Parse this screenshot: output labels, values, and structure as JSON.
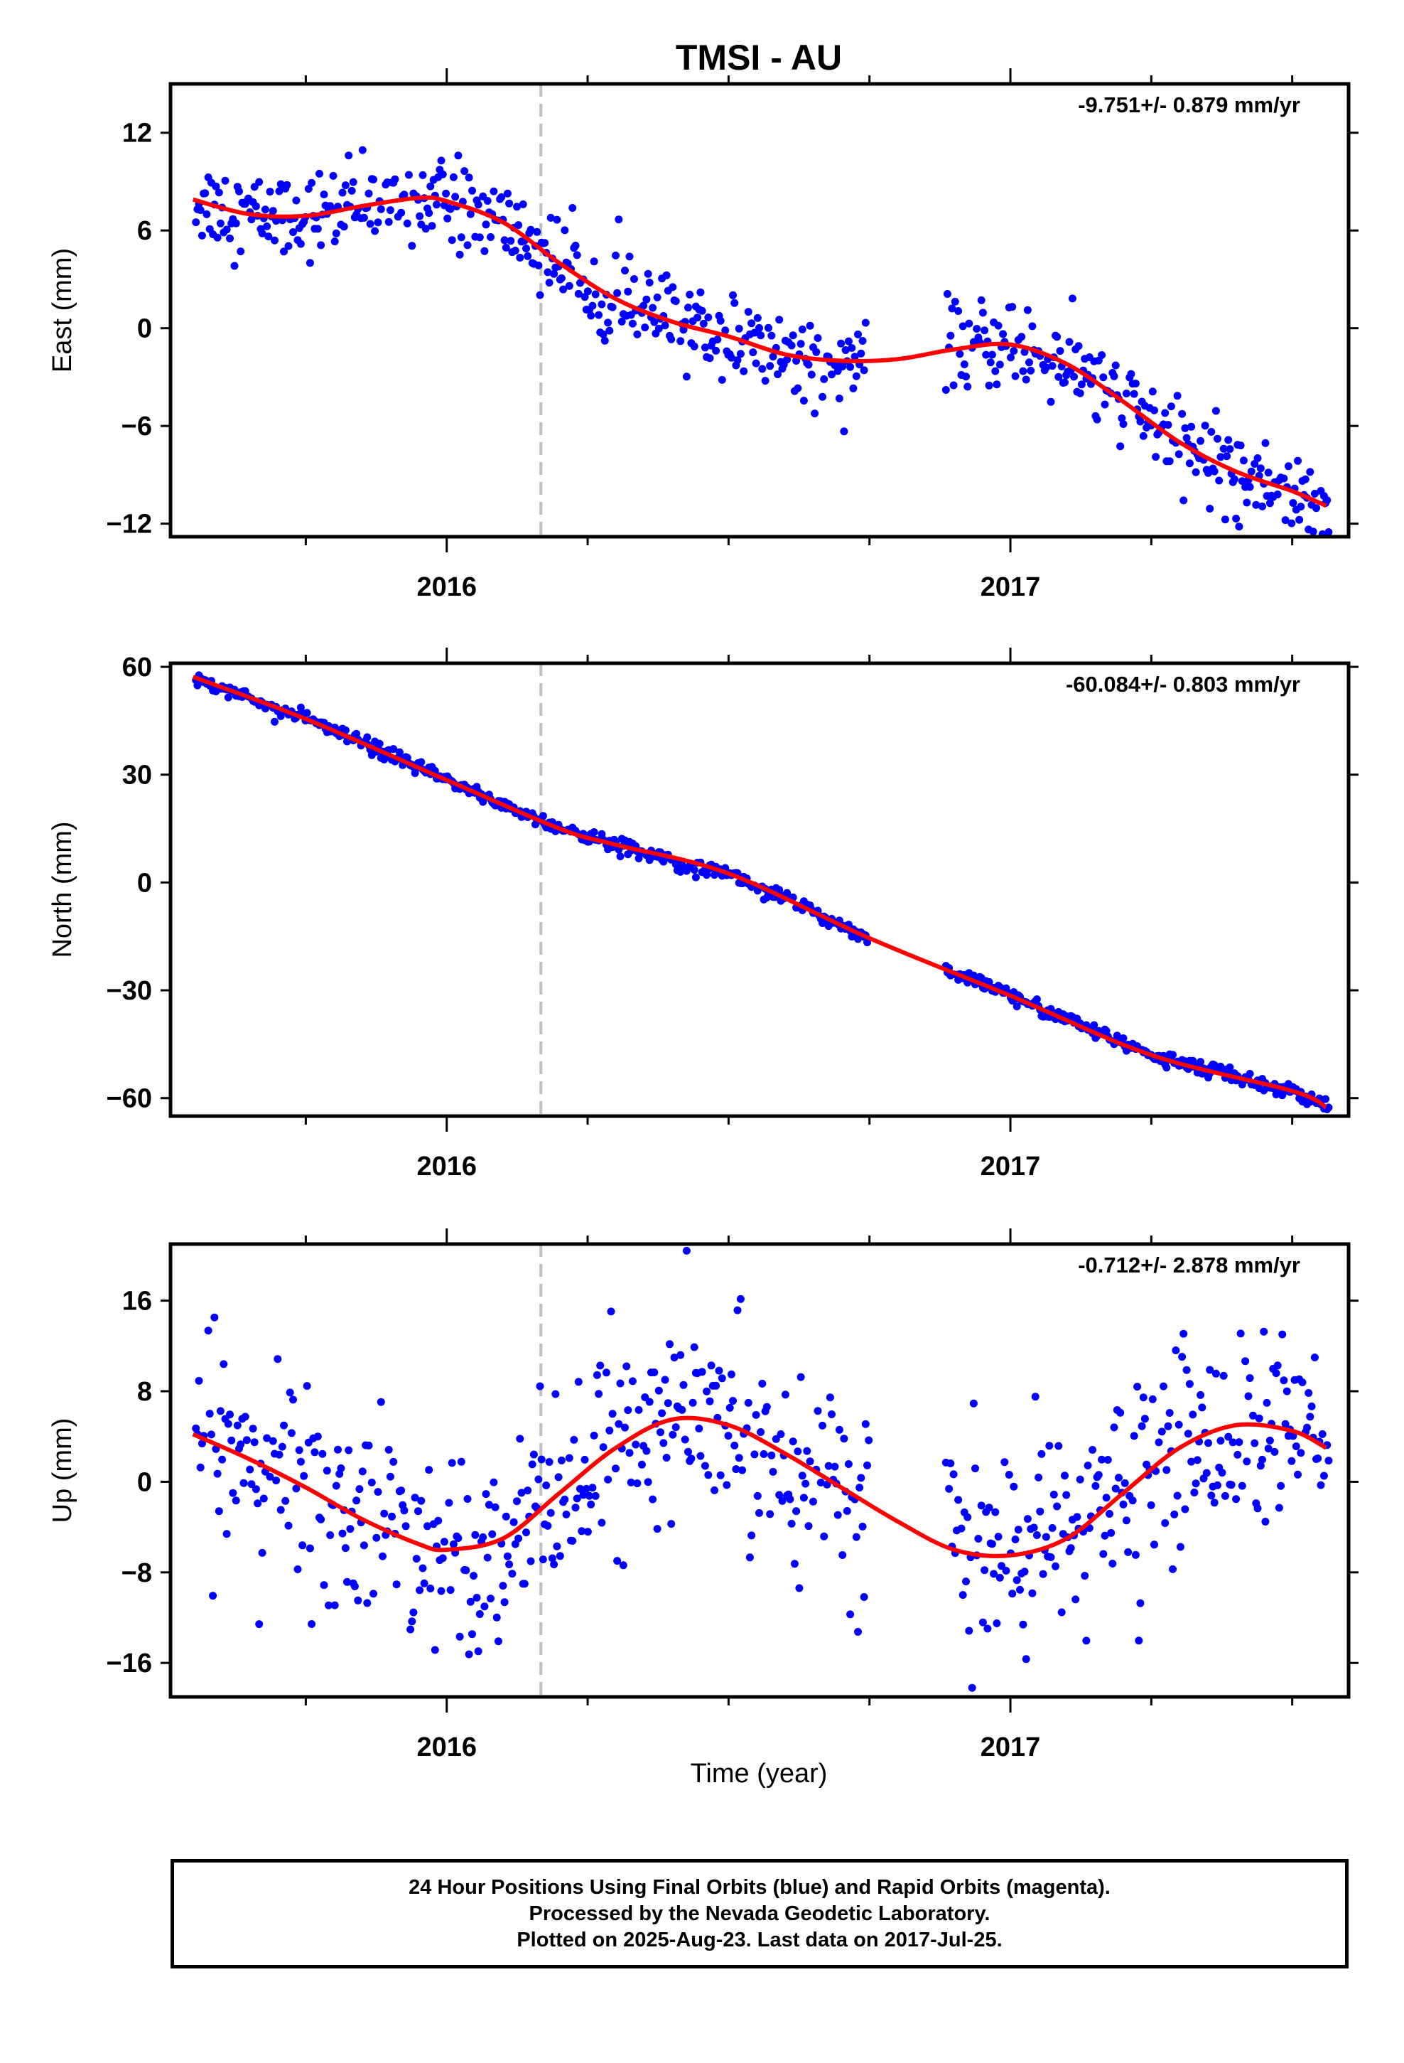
{
  "title": "TMSI - AU",
  "xlabel": "Time (year)",
  "footer": {
    "line1": "24 Hour Positions Using Final Orbits (blue) and Rapid Orbits (magenta).",
    "line2": "Processed by the Nevada Geodetic Laboratory.",
    "line3": "Plotted on 2025-Aug-23. Last data on 2017-Jul-25."
  },
  "colors": {
    "final_points": "#0000ff",
    "fit_line": "#ff0000",
    "event_line": "#c0c0c0"
  },
  "chart_data": [
    {
      "type": "scatter",
      "panel": "east",
      "ylabel": "East (mm)",
      "rate_label": "-9.751+/- 0.879 mm/yr",
      "xlim": [
        2015.51,
        2017.6
      ],
      "ylim": [
        -12.8,
        15.0
      ],
      "yticks": [
        12,
        6,
        0,
        -6,
        -12
      ],
      "xticks": [
        2016,
        2017
      ],
      "xminor": [
        2015.75,
        2016.25,
        2016.5,
        2016.75,
        2017.25,
        2017.5
      ],
      "event_line_x": 2016.167,
      "grid": false,
      "gap": [
        2016.75,
        2016.885
      ],
      "trend": {
        "offset": 2.0,
        "rate": -9.751,
        "annual_sin": 1.5,
        "annual_cos": -1.1,
        "semi_sin": 0.6,
        "semi_cos": 0.0
      },
      "scatter_sd": 1.3,
      "fit_line": {
        "x": [
          2015.55,
          2015.65,
          2015.75,
          2015.85,
          2015.95,
          2016.0,
          2016.1,
          2016.2,
          2016.3,
          2016.4,
          2016.5,
          2016.6,
          2016.7,
          2016.8,
          2016.9,
          2017.0,
          2017.1,
          2017.2,
          2017.3,
          2017.4,
          2017.5,
          2017.56
        ],
        "y": [
          7.9,
          7.0,
          6.9,
          7.5,
          8.0,
          7.8,
          6.5,
          4.0,
          1.8,
          0.4,
          -0.5,
          -1.6,
          -2.0,
          -1.9,
          -1.3,
          -1.0,
          -2.2,
          -4.5,
          -7.0,
          -8.8,
          -10.0,
          -10.9
        ]
      }
    },
    {
      "type": "scatter",
      "panel": "north",
      "ylabel": "North (mm)",
      "rate_label": "-60.084+/- 0.803 mm/yr",
      "xlim": [
        2015.51,
        2017.6
      ],
      "ylim": [
        -65.0,
        61.0
      ],
      "yticks": [
        60,
        30,
        0,
        -30,
        -60
      ],
      "xticks": [
        2016,
        2017
      ],
      "xminor": [
        2015.75,
        2016.25,
        2016.5,
        2016.75,
        2017.25,
        2017.5
      ],
      "event_line_x": 2016.167,
      "grid": false,
      "gap": [
        2016.75,
        2016.885
      ],
      "trend": {
        "offset": 0.0,
        "rate": -60.084,
        "annual_sin": 0.5,
        "annual_cos": 0.3,
        "semi_sin": 0.0,
        "semi_cos": 0.0
      },
      "scatter_sd": 1.0,
      "fit_line": {
        "x": [
          2015.55,
          2015.75,
          2016.0,
          2016.2,
          2016.3,
          2016.5,
          2016.75,
          2017.0,
          2017.25,
          2017.5,
          2017.56
        ],
        "y": [
          57.2,
          45.5,
          28.5,
          15.0,
          10.5,
          2.5,
          -15.5,
          -31.5,
          -48.0,
          -58.0,
          -62.5
        ]
      }
    },
    {
      "type": "scatter",
      "panel": "up",
      "ylabel": "Up (mm)",
      "rate_label": "-0.712+/- 2.878 mm/yr",
      "xlim": [
        2015.51,
        2017.6
      ],
      "ylim": [
        -19.0,
        21.0
      ],
      "yticks": [
        16,
        8,
        0,
        -8,
        -16
      ],
      "xticks": [
        2016,
        2017
      ],
      "xminor": [
        2015.75,
        2016.25,
        2016.5,
        2016.75,
        2017.25,
        2017.5
      ],
      "event_line_x": 2016.167,
      "grid": false,
      "gap": [
        2016.75,
        2016.885
      ],
      "trend": {
        "offset": -0.5,
        "rate": -0.712,
        "annual_sin": -4.0,
        "annual_cos": 4.5,
        "semi_sin": 0.0,
        "semi_cos": 0.0
      },
      "scatter_sd": 4.5,
      "fit_line": {
        "x": [
          2015.55,
          2015.65,
          2015.75,
          2015.85,
          2015.95,
          2016.0,
          2016.1,
          2016.2,
          2016.3,
          2016.4,
          2016.5,
          2016.6,
          2016.7,
          2016.8,
          2016.9,
          2017.0,
          2017.1,
          2017.2,
          2017.3,
          2017.4,
          2017.5,
          2017.56
        ],
        "y": [
          4.2,
          2.0,
          -0.5,
          -3.3,
          -5.5,
          -6.0,
          -5.0,
          -1.0,
          3.0,
          5.5,
          5.0,
          2.5,
          -0.5,
          -3.5,
          -6.0,
          -6.5,
          -5.0,
          -1.0,
          3.0,
          5.0,
          4.5,
          3.0
        ]
      }
    }
  ]
}
